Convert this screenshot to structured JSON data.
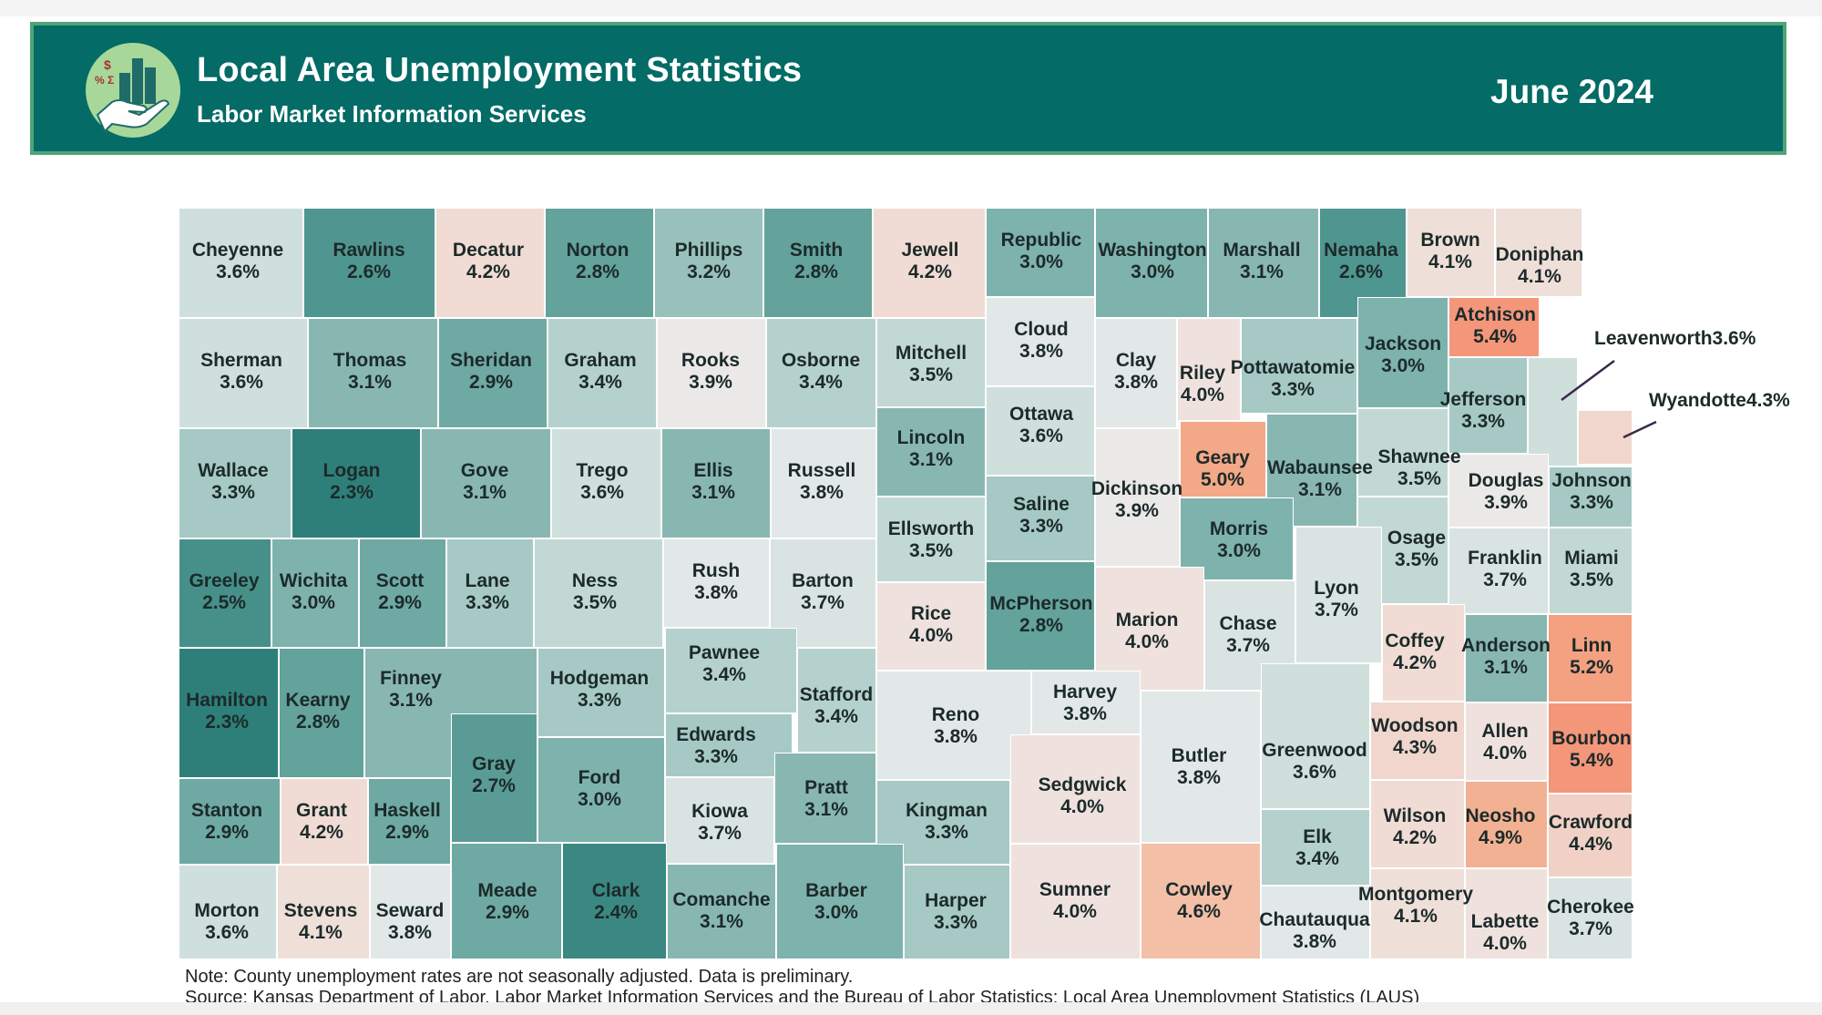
{
  "header": {
    "title": "Local Area Unemployment Statistics",
    "subtitle": "Labor Market Information Services",
    "date": "June 2024",
    "logo_symbols": {
      "dollar": "$",
      "percent": "%",
      "sigma": "Σ"
    }
  },
  "colors": {
    "banner": "#046b66",
    "banner_border": "#4fa478",
    "scale": {
      "2.3": "#2e7f79",
      "2.4": "#3b8883",
      "2.5": "#47908a",
      "2.6": "#509690",
      "2.7": "#5a9c95",
      "2.8": "#64a29c",
      "2.9": "#6fa9a3",
      "3.0": "#7eb2ad",
      "3.1": "#88b7b2",
      "3.2": "#98c1bc",
      "3.3": "#a6c9c5",
      "3.4": "#b5d1cd",
      "3.5": "#c2d8d5",
      "3.6": "#cfdfdc",
      "3.7": "#d9e4e2",
      "3.8": "#e2e8e7",
      "3.9": "#ebe9e8",
      "4.0": "#efe2de",
      "4.1": "#efdfd9",
      "4.2": "#f0dcd4",
      "4.3": "#f0d6cd",
      "4.4": "#f1d1c6",
      "4.6": "#f3bfa7",
      "4.9": "#f3b193",
      "5.0": "#f3a887",
      "5.2": "#f3a181",
      "5.4": "#f4967a"
    }
  },
  "counties": [
    {
      "name": "Cheyenne",
      "rate": "3.6%",
      "value": 3.6
    },
    {
      "name": "Rawlins",
      "rate": "2.6%",
      "value": 2.6
    },
    {
      "name": "Decatur",
      "rate": "4.2%",
      "value": 4.2
    },
    {
      "name": "Norton",
      "rate": "2.8%",
      "value": 2.8
    },
    {
      "name": "Phillips",
      "rate": "3.2%",
      "value": 3.2
    },
    {
      "name": "Smith",
      "rate": "2.8%",
      "value": 2.8
    },
    {
      "name": "Jewell",
      "rate": "4.2%",
      "value": 4.2
    },
    {
      "name": "Republic",
      "rate": "3.0%",
      "value": 3.0
    },
    {
      "name": "Washington",
      "rate": "3.0%",
      "value": 3.0
    },
    {
      "name": "Marshall",
      "rate": "3.1%",
      "value": 3.1
    },
    {
      "name": "Nemaha",
      "rate": "2.6%",
      "value": 2.6
    },
    {
      "name": "Brown",
      "rate": "4.1%",
      "value": 4.1
    },
    {
      "name": "Doniphan",
      "rate": "4.1%",
      "value": 4.1
    },
    {
      "name": "Sherman",
      "rate": "3.6%",
      "value": 3.6
    },
    {
      "name": "Thomas",
      "rate": "3.1%",
      "value": 3.1
    },
    {
      "name": "Sheridan",
      "rate": "2.9%",
      "value": 2.9
    },
    {
      "name": "Graham",
      "rate": "3.4%",
      "value": 3.4
    },
    {
      "name": "Rooks",
      "rate": "3.9%",
      "value": 3.9
    },
    {
      "name": "Osborne",
      "rate": "3.4%",
      "value": 3.4
    },
    {
      "name": "Mitchell",
      "rate": "3.5%",
      "value": 3.5
    },
    {
      "name": "Cloud",
      "rate": "3.8%",
      "value": 3.8
    },
    {
      "name": "Clay",
      "rate": "3.8%",
      "value": 3.8
    },
    {
      "name": "Riley",
      "rate": "4.0%",
      "value": 4.0
    },
    {
      "name": "Pottawatomie",
      "rate": "3.3%",
      "value": 3.3
    },
    {
      "name": "Jackson",
      "rate": "3.0%",
      "value": 3.0
    },
    {
      "name": "Atchison",
      "rate": "5.4%",
      "value": 5.4
    },
    {
      "name": "Jefferson",
      "rate": "3.3%",
      "value": 3.3
    },
    {
      "name": "Leavenworth",
      "rate": "3.6%",
      "value": 3.6
    },
    {
      "name": "Wyandotte",
      "rate": "4.3%",
      "value": 4.3
    },
    {
      "name": "Wallace",
      "rate": "3.3%",
      "value": 3.3
    },
    {
      "name": "Logan",
      "rate": "2.3%",
      "value": 2.3
    },
    {
      "name": "Gove",
      "rate": "3.1%",
      "value": 3.1
    },
    {
      "name": "Trego",
      "rate": "3.6%",
      "value": 3.6
    },
    {
      "name": "Ellis",
      "rate": "3.1%",
      "value": 3.1
    },
    {
      "name": "Russell",
      "rate": "3.8%",
      "value": 3.8
    },
    {
      "name": "Lincoln",
      "rate": "3.1%",
      "value": 3.1
    },
    {
      "name": "Ottawa",
      "rate": "3.6%",
      "value": 3.6
    },
    {
      "name": "Dickinson",
      "rate": "3.9%",
      "value": 3.9
    },
    {
      "name": "Geary",
      "rate": "5.0%",
      "value": 5.0
    },
    {
      "name": "Wabaunsee",
      "rate": "3.1%",
      "value": 3.1
    },
    {
      "name": "Shawnee",
      "rate": "3.5%",
      "value": 3.5
    },
    {
      "name": "Douglas",
      "rate": "3.9%",
      "value": 3.9
    },
    {
      "name": "Johnson",
      "rate": "3.3%",
      "value": 3.3
    },
    {
      "name": "Ellsworth",
      "rate": "3.5%",
      "value": 3.5
    },
    {
      "name": "Saline",
      "rate": "3.3%",
      "value": 3.3
    },
    {
      "name": "Morris",
      "rate": "3.0%",
      "value": 3.0
    },
    {
      "name": "Osage",
      "rate": "3.5%",
      "value": 3.5
    },
    {
      "name": "Franklin",
      "rate": "3.7%",
      "value": 3.7
    },
    {
      "name": "Miami",
      "rate": "3.5%",
      "value": 3.5
    },
    {
      "name": "Greeley",
      "rate": "2.5%",
      "value": 2.5
    },
    {
      "name": "Wichita",
      "rate": "3.0%",
      "value": 3.0
    },
    {
      "name": "Scott",
      "rate": "2.9%",
      "value": 2.9
    },
    {
      "name": "Lane",
      "rate": "3.3%",
      "value": 3.3
    },
    {
      "name": "Ness",
      "rate": "3.5%",
      "value": 3.5
    },
    {
      "name": "Rush",
      "rate": "3.8%",
      "value": 3.8
    },
    {
      "name": "Barton",
      "rate": "3.7%",
      "value": 3.7
    },
    {
      "name": "Rice",
      "rate": "4.0%",
      "value": 4.0
    },
    {
      "name": "McPherson",
      "rate": "2.8%",
      "value": 2.8
    },
    {
      "name": "Marion",
      "rate": "4.0%",
      "value": 4.0
    },
    {
      "name": "Chase",
      "rate": "3.7%",
      "value": 3.7
    },
    {
      "name": "Lyon",
      "rate": "3.7%",
      "value": 3.7
    },
    {
      "name": "Coffey",
      "rate": "4.2%",
      "value": 4.2
    },
    {
      "name": "Anderson",
      "rate": "3.1%",
      "value": 3.1
    },
    {
      "name": "Linn",
      "rate": "5.2%",
      "value": 5.2
    },
    {
      "name": "Hamilton",
      "rate": "2.3%",
      "value": 2.3
    },
    {
      "name": "Kearny",
      "rate": "2.8%",
      "value": 2.8
    },
    {
      "name": "Finney",
      "rate": "3.1%",
      "value": 3.1
    },
    {
      "name": "Hodgeman",
      "rate": "3.3%",
      "value": 3.3
    },
    {
      "name": "Pawnee",
      "rate": "3.4%",
      "value": 3.4
    },
    {
      "name": "Stafford",
      "rate": "3.4%",
      "value": 3.4
    },
    {
      "name": "Reno",
      "rate": "3.8%",
      "value": 3.8
    },
    {
      "name": "Harvey",
      "rate": "3.8%",
      "value": 3.8
    },
    {
      "name": "Butler",
      "rate": "3.8%",
      "value": 3.8
    },
    {
      "name": "Greenwood",
      "rate": "3.6%",
      "value": 3.6
    },
    {
      "name": "Woodson",
      "rate": "4.3%",
      "value": 4.3
    },
    {
      "name": "Allen",
      "rate": "4.0%",
      "value": 4.0
    },
    {
      "name": "Bourbon",
      "rate": "5.4%",
      "value": 5.4
    },
    {
      "name": "Edwards",
      "rate": "3.3%",
      "value": 3.3
    },
    {
      "name": "Gray",
      "rate": "2.7%",
      "value": 2.7
    },
    {
      "name": "Ford",
      "rate": "3.0%",
      "value": 3.0
    },
    {
      "name": "Kiowa",
      "rate": "3.7%",
      "value": 3.7
    },
    {
      "name": "Pratt",
      "rate": "3.1%",
      "value": 3.1
    },
    {
      "name": "Kingman",
      "rate": "3.3%",
      "value": 3.3
    },
    {
      "name": "Sedgwick",
      "rate": "4.0%",
      "value": 4.0
    },
    {
      "name": "Elk",
      "rate": "3.4%",
      "value": 3.4
    },
    {
      "name": "Wilson",
      "rate": "4.2%",
      "value": 4.2
    },
    {
      "name": "Neosho",
      "rate": "4.9%",
      "value": 4.9
    },
    {
      "name": "Crawford",
      "rate": "4.4%",
      "value": 4.4
    },
    {
      "name": "Stanton",
      "rate": "2.9%",
      "value": 2.9
    },
    {
      "name": "Grant",
      "rate": "4.2%",
      "value": 4.2
    },
    {
      "name": "Haskell",
      "rate": "2.9%",
      "value": 2.9
    },
    {
      "name": "Meade",
      "rate": "2.9%",
      "value": 2.9
    },
    {
      "name": "Clark",
      "rate": "2.4%",
      "value": 2.4
    },
    {
      "name": "Comanche",
      "rate": "3.1%",
      "value": 3.1
    },
    {
      "name": "Barber",
      "rate": "3.0%",
      "value": 3.0
    },
    {
      "name": "Harper",
      "rate": "3.3%",
      "value": 3.3
    },
    {
      "name": "Sumner",
      "rate": "4.0%",
      "value": 4.0
    },
    {
      "name": "Cowley",
      "rate": "4.6%",
      "value": 4.6
    },
    {
      "name": "Chautauqua",
      "rate": "3.8%",
      "value": 3.8
    },
    {
      "name": "Montgomery",
      "rate": "4.1%",
      "value": 4.1
    },
    {
      "name": "Labette",
      "rate": "4.0%",
      "value": 4.0
    },
    {
      "name": "Cherokee",
      "rate": "3.7%",
      "value": 3.7
    },
    {
      "name": "Morton",
      "rate": "3.6%",
      "value": 3.6
    },
    {
      "name": "Stevens",
      "rate": "4.1%",
      "value": 4.1
    },
    {
      "name": "Seward",
      "rate": "3.8%",
      "value": 3.8
    }
  ],
  "notes": {
    "note": "Note: County unemployment rates are not seasonally adjusted. Data is preliminary.",
    "source": "Source: Kansas Department of Labor, Labor Market Information Services and the Bureau of Labor Statistics; Local Area Unemployment Statistics (LAUS)"
  }
}
